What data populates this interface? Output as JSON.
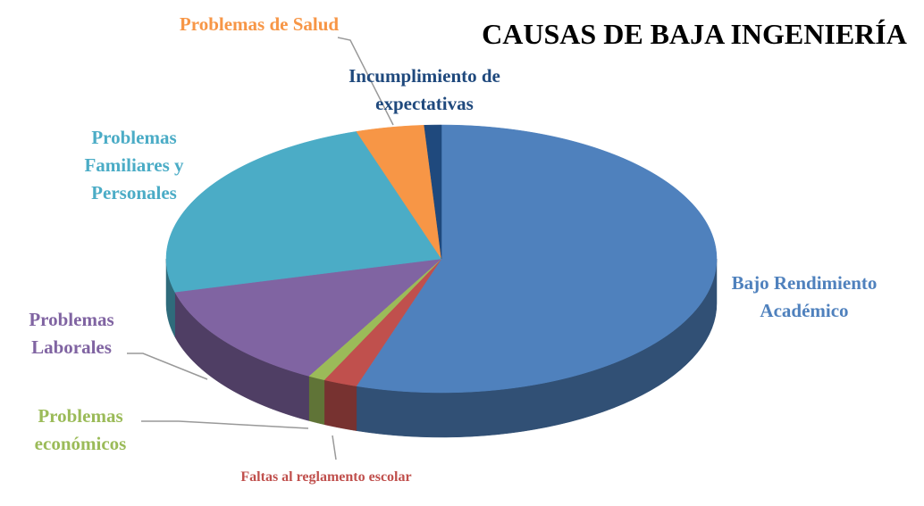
{
  "chart_data": {
    "type": "pie3d",
    "title": "CAUSAS DE BAJA INGENIERÍA",
    "categories": [
      "Bajo Rendimiento Académico",
      "Faltas al reglamento escolar",
      "Problemas económicos",
      "Problemas Laborales",
      "Problemas Familiares y Personales",
      "Problemas de Salud",
      "Incumplimiento de expectativas"
    ],
    "values": [
      55,
      2,
      1,
      13,
      24,
      4,
      1
    ],
    "colors": [
      "#4f81bd",
      "#c0504d",
      "#9bbb59",
      "#8064a2",
      "#4bacc6",
      "#f79646",
      "#1f497d"
    ]
  }
}
